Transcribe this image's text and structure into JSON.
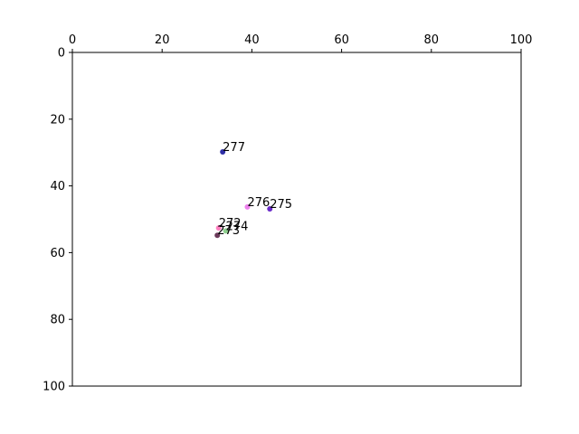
{
  "chart_data": {
    "type": "scatter",
    "title": "",
    "xlabel": "",
    "ylabel": "",
    "xlim": [
      0,
      100
    ],
    "ylim": [
      0,
      100
    ],
    "y_inverted": true,
    "x_axis_position": "top",
    "grid": false,
    "x_ticks": [
      "0",
      "20",
      "40",
      "60",
      "80",
      "100"
    ],
    "y_ticks": [
      "0",
      "20",
      "40",
      "60",
      "80",
      "100"
    ],
    "points": [
      {
        "label": "277",
        "x": 33.5,
        "y": 29.8,
        "color": "#2f2fa6"
      },
      {
        "label": "276",
        "x": 39.0,
        "y": 46.3,
        "color": "#ee82ee"
      },
      {
        "label": "275",
        "x": 44.0,
        "y": 46.9,
        "color": "#6a2bc9"
      },
      {
        "label": "272",
        "x": 32.6,
        "y": 52.6,
        "color": "#ff80c0"
      },
      {
        "label": "274",
        "x": 34.2,
        "y": 53.5,
        "color": "#8fd08f"
      },
      {
        "label": "273",
        "x": 32.3,
        "y": 54.8,
        "color": "#6b3a5a"
      }
    ]
  }
}
